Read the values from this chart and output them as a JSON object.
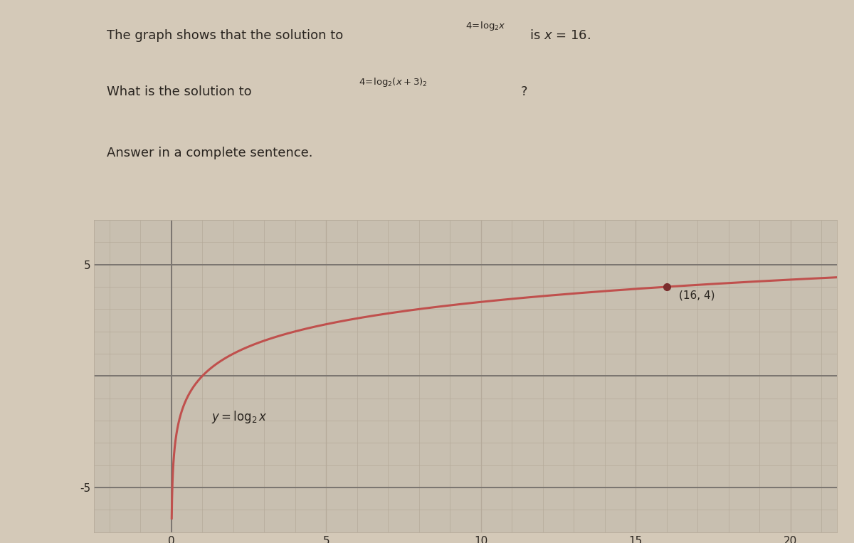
{
  "curve_color": "#c0504d",
  "point_color": "#7a2e2e",
  "point_x": 16,
  "point_y": 4,
  "point_label": "(16, 4)",
  "curve_label": "$y = \\log_2 x$",
  "xlim": [
    -2.5,
    21.5
  ],
  "ylim": [
    -6.5,
    7.0
  ],
  "background_color": "#d4c9b8",
  "plot_bg_color": "#c8bfb0",
  "grid_color": "#b5aa9a",
  "axis_color": "#7a7570",
  "text_color": "#2a2520",
  "font_size_text": 13,
  "font_size_label": 12,
  "font_size_point": 11,
  "line1_plain": "The graph shows that the solution to",
  "line1_math": "$^{4=\\log_2 x}$",
  "line1_suffix": " is $x$ = 16.",
  "line2_plain": "What is the solution to",
  "line2_math": "$^{4=\\log_2(x+3)_2}$",
  "line2_suffix": "?",
  "line3": "Answer in a complete sentence."
}
